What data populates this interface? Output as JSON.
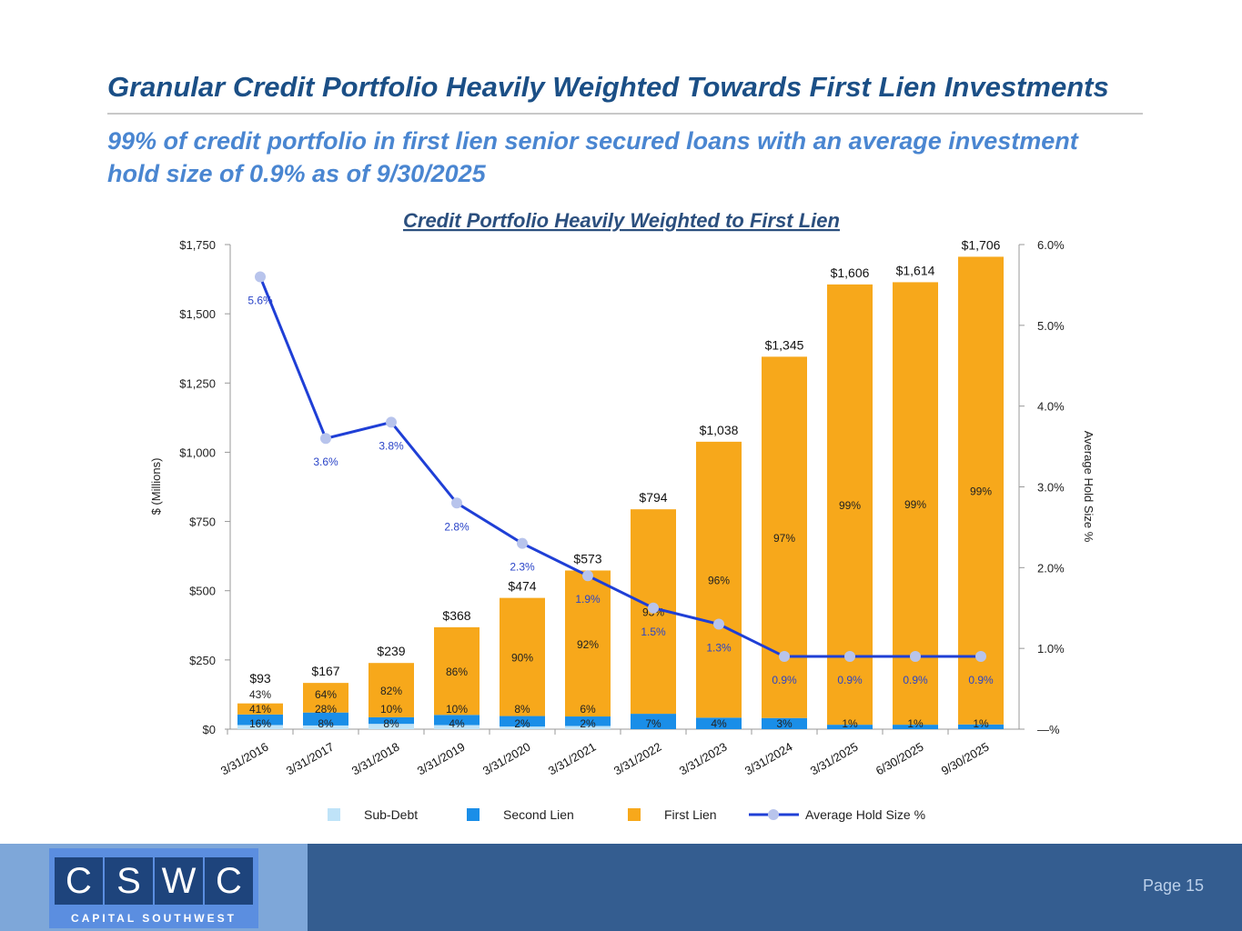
{
  "header": {
    "title": "Granular Credit Portfolio Heavily Weighted Towards First Lien Investments",
    "subtitle": "99% of credit portfolio in first lien senior secured loans with an average investment hold size of 0.9% as of 9/30/2025"
  },
  "chart_data": {
    "type": "bar",
    "title": "Credit Portfolio Heavily Weighted to First Lien",
    "ylabel": "$ (Millions)",
    "y2label": "Average Hold Size %",
    "ylim": [
      0,
      1750
    ],
    "y2lim": [
      0,
      6
    ],
    "yticks": [
      "$0",
      "$250",
      "$500",
      "$750",
      "$1,000",
      "$1,250",
      "$1,500",
      "$1,750"
    ],
    "y2ticks": [
      "—%",
      "1.0%",
      "2.0%",
      "3.0%",
      "4.0%",
      "5.0%",
      "6.0%"
    ],
    "categories": [
      "3/31/2016",
      "3/31/2017",
      "3/31/2018",
      "3/31/2019",
      "3/31/2020",
      "3/31/2021",
      "3/31/2022",
      "3/31/2023",
      "3/31/2024",
      "3/31/2025",
      "6/30/2025",
      "9/30/2025"
    ],
    "totals": [
      93,
      167,
      239,
      368,
      474,
      573,
      794,
      1038,
      1345,
      1606,
      1614,
      1706
    ],
    "total_labels": [
      "$93",
      "$167",
      "$239",
      "$368",
      "$474",
      "$573",
      "$794",
      "$1,038",
      "$1,345",
      "$1,606",
      "$1,614",
      "$1,706"
    ],
    "series": [
      {
        "name": "Sub-Debt",
        "color": "#bfe3f8",
        "values": [
          16,
          8,
          8,
          4,
          2,
          2,
          0,
          0,
          0,
          0,
          0,
          0
        ]
      },
      {
        "name": "Second Lien",
        "color": "#1a8ee8",
        "values": [
          41,
          28,
          10,
          10,
          8,
          6,
          7,
          4,
          3,
          1,
          1,
          1
        ]
      },
      {
        "name": "First Lien",
        "color": "#f7a81b",
        "values": [
          43,
          64,
          82,
          86,
          90,
          92,
          93,
          96,
          97,
          99,
          99,
          99
        ]
      }
    ],
    "line": {
      "name": "Average Hold Size %",
      "color": "#1f3fd6",
      "marker": "#b8c4ec",
      "values": [
        5.6,
        3.6,
        3.8,
        2.8,
        2.3,
        1.9,
        1.5,
        1.3,
        0.9,
        0.9,
        0.9,
        0.9
      ]
    },
    "legend": "bottom"
  },
  "footer": {
    "logo_letters": [
      "C",
      "S",
      "W",
      "C"
    ],
    "logo_caption": "CAPITAL SOUTHWEST",
    "page": "Page 15"
  }
}
